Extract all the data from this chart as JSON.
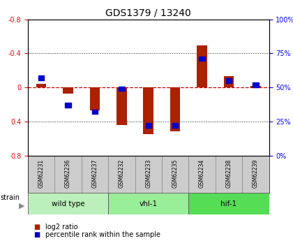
{
  "title": "GDS1379 / 13240",
  "samples": [
    "GSM62231",
    "GSM62236",
    "GSM62237",
    "GSM62232",
    "GSM62233",
    "GSM62235",
    "GSM62234",
    "GSM62238",
    "GSM62239"
  ],
  "log2_ratio": [
    0.04,
    -0.07,
    -0.27,
    -0.44,
    -0.55,
    -0.52,
    0.49,
    0.13,
    0.02
  ],
  "pct_rank_raw": [
    57,
    37,
    32,
    49,
    22,
    22,
    71,
    55,
    52
  ],
  "groups": [
    {
      "label": "wild type",
      "start": 0,
      "end": 3,
      "color": "#bbf0bb"
    },
    {
      "label": "vhl-1",
      "start": 3,
      "end": 6,
      "color": "#99ee99"
    },
    {
      "label": "hif-1",
      "start": 6,
      "end": 9,
      "color": "#55dd55"
    }
  ],
  "ylim": [
    -0.8,
    0.8
  ],
  "yticks_left": [
    -0.8,
    -0.4,
    0.0,
    0.4,
    0.8
  ],
  "right_yticks_pct": [
    0,
    25,
    50,
    75,
    100
  ],
  "bar_color": "#aa2200",
  "dot_color": "#0000cc",
  "zero_line_color": "#cc0000",
  "grid_color": "#222222",
  "bg_plot": "#ffffff",
  "bg_sample": "#cccccc",
  "title_fontsize": 10,
  "tick_fontsize": 7,
  "sample_fontsize": 5.5,
  "group_fontsize": 7.5,
  "legend_fontsize": 7
}
